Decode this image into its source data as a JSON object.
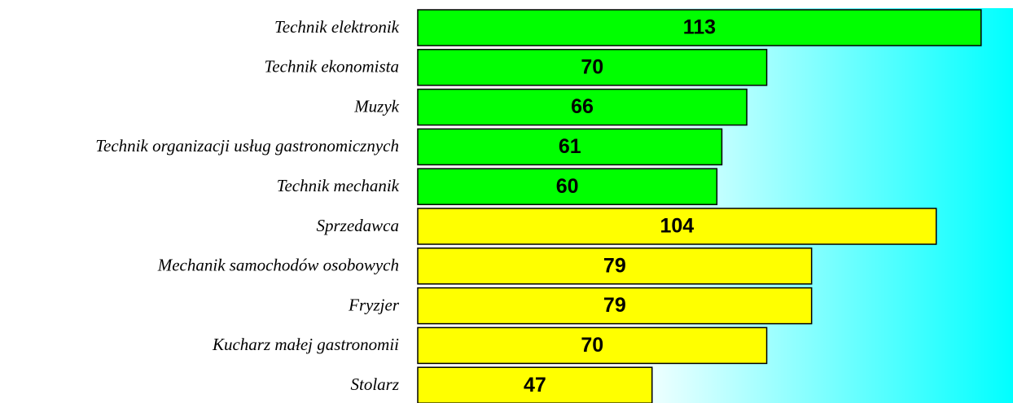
{
  "chart_data": {
    "type": "hbar",
    "categories": [
      "Technik elektronik",
      "Technik ekonomista",
      "Muzyk",
      "Technik organizacji usług gastronomicznych",
      "Technik mechanik",
      "Sprzedawca",
      "Mechanik samochodów osobowych",
      "Fryzjer",
      "Kucharz małej gastronomii",
      "Stolarz"
    ],
    "values": [
      113,
      70,
      66,
      61,
      60,
      104,
      79,
      79,
      70,
      47
    ],
    "colors": [
      "#00ff00",
      "#00ff00",
      "#00ff00",
      "#00ff00",
      "#00ff00",
      "#ffff00",
      "#ffff00",
      "#ffff00",
      "#ffff00",
      "#ffff00"
    ],
    "xlim": [
      0,
      119.4
    ]
  }
}
